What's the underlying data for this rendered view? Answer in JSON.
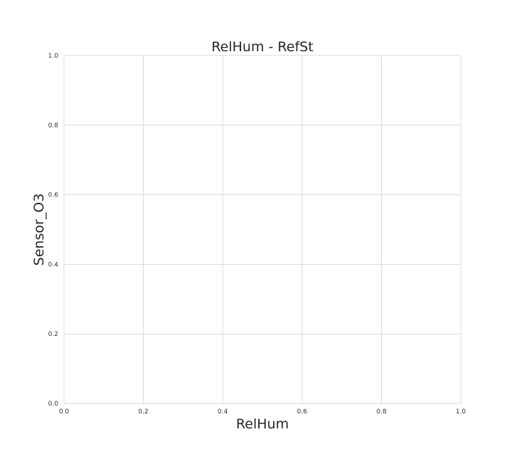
{
  "chart_data": {
    "type": "scatter",
    "title": "RelHum - RefSt",
    "xlabel": "RelHum",
    "ylabel": "Sensor_O3",
    "xlim": [
      0.0,
      1.0
    ],
    "ylim": [
      0.0,
      1.0
    ],
    "x_ticks": [
      0.0,
      0.2,
      0.4,
      0.6,
      0.8,
      1.0
    ],
    "y_ticks": [
      0.0,
      0.2,
      0.4,
      0.6,
      0.8,
      1.0
    ],
    "x_tick_labels": [
      "0.0",
      "0.2",
      "0.4",
      "0.6",
      "0.8",
      "1.0"
    ],
    "y_tick_labels": [
      "0.0",
      "0.2",
      "0.4",
      "0.6",
      "0.8",
      "1.0"
    ],
    "grid": true,
    "series": []
  }
}
